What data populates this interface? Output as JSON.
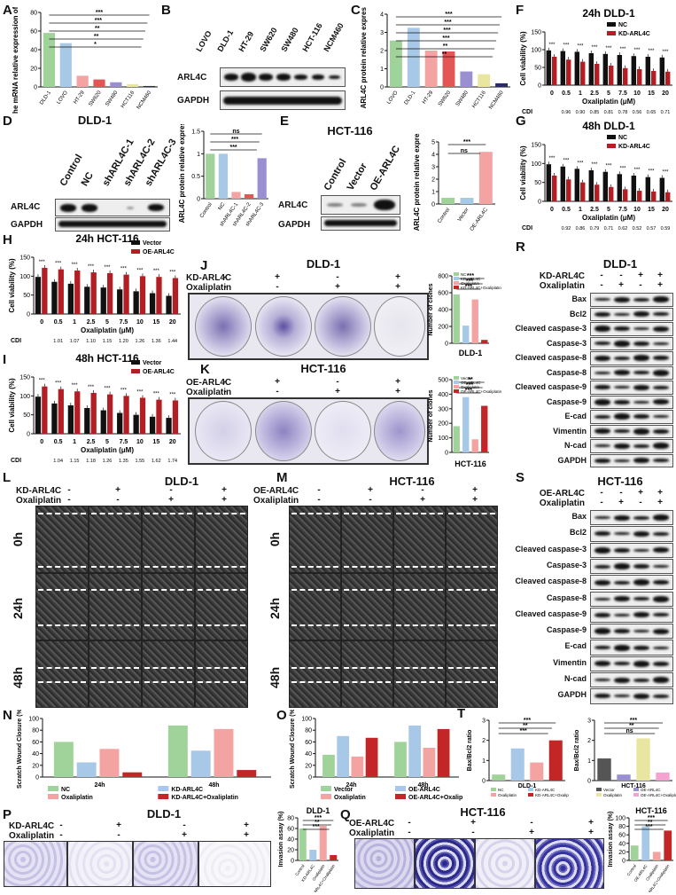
{
  "panel_letters": [
    "A",
    "B",
    "C",
    "D",
    "E",
    "F",
    "G",
    "H",
    "I",
    "J",
    "K",
    "L",
    "M",
    "N",
    "O",
    "P",
    "Q",
    "R",
    "S",
    "T"
  ],
  "B": {
    "lanes": [
      "LOVO",
      "DLD-1",
      "HT-29",
      "SW620",
      "SW480",
      "HCT-116",
      "NCM460"
    ],
    "rows": [
      "ARL4C",
      "GAPDH"
    ]
  },
  "D": {
    "title": "DLD-1",
    "lanes": [
      "Control",
      "NC",
      "shARL4C-1",
      "shARL4C-2",
      "shARL4C-3"
    ],
    "rows": [
      "ARL4C",
      "GAPDH"
    ]
  },
  "E": {
    "title": "HCT-116",
    "lanes": [
      "Control",
      "Vector",
      "OE-ARL4C"
    ],
    "rows": [
      "ARL4C",
      "GAPDH"
    ]
  },
  "F": {
    "title": "24h DLD-1",
    "legend": [
      "NC",
      "KD-ARL4C"
    ],
    "ylabel": "Cell viability (%)",
    "xlabel": "Oxaliplatin (μM)",
    "cdi_label": "CDI",
    "cdi": [
      "0.96",
      "0.90",
      "0.85",
      "0.81",
      "0.78",
      "0.56",
      "0.65",
      "0.71"
    ]
  },
  "G": {
    "title": "48h DLD-1",
    "legend": [
      "NC",
      "KD-ARL4C"
    ],
    "ylabel": "Cell viability (%)",
    "xlabel": "Oxaliplatin (μM)",
    "cdi_label": "CDI",
    "cdi": [
      "0.92",
      "0.86",
      "0.79",
      "0.71",
      "0.62",
      "0.52",
      "0.57",
      "0.59"
    ]
  },
  "H": {
    "title": "24h HCT-116",
    "legend": [
      "Vector",
      "OE-ARL4C"
    ],
    "ylabel": "Cell viability (%)",
    "xlabel": "Oxaliplatin (μM)",
    "cdi_label": "CDI",
    "cdi": [
      "1.01",
      "1.07",
      "1.10",
      "1.15",
      "1.20",
      "1.26",
      "1.36",
      "1.44"
    ]
  },
  "I": {
    "title": "48h HCT-116",
    "legend": [
      "Vector",
      "OE-ARL4C"
    ],
    "ylabel": "Cell viability (%)",
    "xlabel": "Oxaliplatin (μM)",
    "cdi_label": "CDI",
    "cdi": [
      "1.04",
      "1.15",
      "1.18",
      "1.26",
      "1.35",
      "1.55",
      "1.62",
      "1.74"
    ]
  },
  "J": {
    "title": "DLD-1",
    "rows": [
      "KD-ARL4C",
      "Oxaliplatin"
    ],
    "signs": [
      [
        "-",
        "+",
        "-",
        "+"
      ],
      [
        "-",
        "-",
        "+",
        "+"
      ]
    ]
  },
  "K": {
    "title": "HCT-116",
    "rows": [
      "OE-ARL4C",
      "Oxaliplatin"
    ],
    "signs": [
      [
        "-",
        "+",
        "-",
        "+"
      ],
      [
        "-",
        "-",
        "+",
        "+"
      ]
    ]
  },
  "L": {
    "title": "DLD-1",
    "rows": [
      "KD-ARL4C",
      "Oxaliplatin"
    ],
    "signs": [
      [
        "-",
        "+",
        "-",
        "+"
      ],
      [
        "-",
        "-",
        "+",
        "+"
      ]
    ],
    "times": [
      "0h",
      "24h",
      "48h"
    ]
  },
  "M": {
    "title": "HCT-116",
    "rows": [
      "OE-ARL4C",
      "Oxaliplatin"
    ],
    "signs": [
      [
        "-",
        "+",
        "-",
        "+"
      ],
      [
        "-",
        "-",
        "+",
        "+"
      ]
    ],
    "times": [
      "0h",
      "24h",
      "48h"
    ]
  },
  "P": {
    "title": "DLD-1",
    "rows": [
      "KD-ARL4C",
      "Oxaliplatin"
    ],
    "signs": [
      [
        "-",
        "+",
        "-",
        "+"
      ],
      [
        "-",
        "-",
        "+",
        "+"
      ]
    ]
  },
  "Q": {
    "title": "HCT-116",
    "rows": [
      "OE-ARL4C",
      "Oxaliplatin"
    ],
    "signs": [
      [
        "-",
        "+",
        "-",
        "+"
      ],
      [
        "-",
        "-",
        "+",
        "+"
      ]
    ]
  },
  "R": {
    "title": "DLD-1",
    "rows": [
      "KD-ARL4C",
      "Oxaliplatin"
    ],
    "signs": [
      [
        "-",
        "-",
        "+",
        "+"
      ],
      [
        "-",
        "+",
        "-",
        "+"
      ]
    ],
    "blots": [
      "Bax",
      "Bcl2",
      "Cleaved caspase-3",
      "Caspase-3",
      "Cleaved caspase-8",
      "Caspase-8",
      "Cleaved caspase-9",
      "Caspase-9",
      "E-cad",
      "Vimentin",
      "N-cad",
      "GAPDH"
    ]
  },
  "S": {
    "title": "HCT-116",
    "rows": [
      "OE-ARL4C",
      "Oxaliplatin"
    ],
    "signs": [
      [
        "-",
        "-",
        "+",
        "+"
      ],
      [
        "-",
        "+",
        "-",
        "+"
      ]
    ],
    "blots": [
      "Bax",
      "Bcl2",
      "Cleaved caspase-3",
      "Caspase-3",
      "Cleaved caspase-8",
      "Caspase-8",
      "Cleaved caspase-9",
      "Caspase-9",
      "E-cad",
      "Vimentin",
      "N-cad",
      "GAPDH"
    ]
  },
  "chart_data": [
    {
      "id": "A",
      "type": "bar",
      "ylabel": "The mRNA relative expression of ARL4C",
      "categories": [
        "DLD-1",
        "LOVO",
        "HT-29",
        "SW620",
        "SW480",
        "HCT116",
        "NCM460"
      ],
      "values": [
        58,
        47,
        12,
        8,
        5,
        3,
        1
      ],
      "ylim": [
        0,
        80
      ],
      "yticks": [
        0,
        20,
        40,
        60,
        80
      ],
      "colors": [
        "#9fd39a",
        "#a8c8e8",
        "#f4a3a3",
        "#e45656",
        "#9a8fd0",
        "#e8e6a0",
        "#2a2a6a"
      ],
      "sig": [
        "***",
        "***",
        "**",
        "**",
        "*"
      ]
    },
    {
      "id": "C",
      "type": "bar",
      "ylabel": "ARL4C protein relative expression",
      "categories": [
        "LOVO",
        "DLD-1",
        "HT-29",
        "SW620",
        "SW480",
        "HCT116",
        "NCM460"
      ],
      "values": [
        2.55,
        3.25,
        2.0,
        1.95,
        0.85,
        0.7,
        0.2
      ],
      "ylim": [
        0,
        4
      ],
      "yticks": [
        0,
        1,
        2,
        3,
        4
      ],
      "colors": [
        "#9fd39a",
        "#a8c8e8",
        "#f4a3a3",
        "#e45656",
        "#9a8fd0",
        "#e8e6a0",
        "#2a2a6a"
      ],
      "sig": [
        "***",
        "***",
        "***",
        "***",
        "**",
        "**"
      ]
    },
    {
      "id": "D2",
      "type": "bar",
      "ylabel": "ARL4C protein relative expression",
      "categories": [
        "Control",
        "NC",
        "shARL4C-1",
        "shARL4C-2",
        "shARL4C-3"
      ],
      "values": [
        1.0,
        1.0,
        0.15,
        0.1,
        0.9
      ],
      "ylim": [
        0,
        1.5
      ],
      "yticks": [
        0,
        0.5,
        1.0,
        1.5
      ],
      "colors": [
        "#9fd39a",
        "#a8c8e8",
        "#f4a3a3",
        "#e45656",
        "#9a8fd0"
      ],
      "sig": [
        "ns",
        "***",
        "***"
      ]
    },
    {
      "id": "E2",
      "type": "bar",
      "ylabel": "ARL4C protein relative expression",
      "categories": [
        "Control",
        "Vector",
        "OE-ARL4C"
      ],
      "values": [
        0.5,
        0.5,
        4.2
      ],
      "ylim": [
        0,
        5
      ],
      "yticks": [
        0,
        1,
        2,
        3,
        4,
        5
      ],
      "colors": [
        "#9fd39a",
        "#a8c8e8",
        "#f4a3a3"
      ],
      "sig": [
        "***",
        "ns"
      ]
    },
    {
      "id": "F",
      "type": "bar",
      "title": "24h DLD-1",
      "categories": [
        "0",
        "0.5",
        "1",
        "2.5",
        "5",
        "7.5",
        "10",
        "15",
        "20"
      ],
      "series": [
        {
          "name": "NC",
          "values": [
            98,
            96,
            94,
            90,
            88,
            85,
            82,
            80,
            78
          ]
        },
        {
          "name": "KD-ARL4C",
          "values": [
            80,
            72,
            66,
            60,
            55,
            48,
            45,
            40,
            38
          ]
        }
      ],
      "ylim": [
        0,
        150
      ],
      "yticks": [
        0,
        50,
        100,
        150
      ]
    },
    {
      "id": "G",
      "type": "bar",
      "title": "48h DLD-1",
      "categories": [
        "0",
        "0.5",
        "1",
        "2.5",
        "5",
        "7.5",
        "10",
        "15",
        "20"
      ],
      "series": [
        {
          "name": "NC",
          "values": [
            98,
            92,
            86,
            82,
            78,
            72,
            68,
            64,
            62
          ]
        },
        {
          "name": "KD-ARL4C",
          "values": [
            68,
            58,
            50,
            44,
            38,
            32,
            28,
            26,
            24
          ]
        }
      ],
      "ylim": [
        0,
        150
      ],
      "yticks": [
        0,
        50,
        100,
        150
      ]
    },
    {
      "id": "H",
      "type": "bar",
      "title": "24h HCT-116",
      "categories": [
        "0",
        "0.5",
        "1",
        "2.5",
        "5",
        "7.5",
        "10",
        "15",
        "20"
      ],
      "series": [
        {
          "name": "Vector",
          "values": [
            98,
            85,
            80,
            72,
            70,
            65,
            60,
            55,
            48
          ]
        },
        {
          "name": "OE-ARL4C",
          "values": [
            122,
            118,
            115,
            110,
            108,
            104,
            100,
            98,
            95
          ]
        }
      ],
      "ylim": [
        0,
        150
      ],
      "yticks": [
        0,
        50,
        100,
        150
      ]
    },
    {
      "id": "I",
      "type": "bar",
      "title": "48h HCT-116",
      "categories": [
        "0",
        "0.5",
        "1",
        "2.5",
        "5",
        "7.5",
        "10",
        "15",
        "20"
      ],
      "series": [
        {
          "name": "Vector",
          "values": [
            98,
            80,
            75,
            68,
            62,
            55,
            50,
            45,
            42
          ]
        },
        {
          "name": "OE-ARL4C",
          "values": [
            125,
            118,
            112,
            108,
            104,
            100,
            95,
            90,
            88
          ]
        }
      ],
      "ylim": [
        0,
        150
      ],
      "yticks": [
        0,
        50,
        100,
        150
      ]
    },
    {
      "id": "J2",
      "type": "bar",
      "title": "DLD-1",
      "ylabel": "Number of clones",
      "categories": [
        "NC",
        "KD-ARL4C",
        "Oxaliplatin",
        "KD-ARL4C+Oxaliplatin"
      ],
      "values": [
        580,
        210,
        520,
        40
      ],
      "ylim": [
        0,
        800
      ],
      "yticks": [
        0,
        200,
        400,
        600,
        800
      ],
      "colors": [
        "#9fd39a",
        "#a8c8e8",
        "#f4a3a3",
        "#c22626"
      ],
      "sig": [
        "***",
        "***",
        "***"
      ]
    },
    {
      "id": "K2",
      "type": "bar",
      "title": "HCT-116",
      "ylabel": "Number of clones",
      "categories": [
        "Vector",
        "OE-ARL4C",
        "Oxaliplatin",
        "OE-ARL4C+Oxaliplatin"
      ],
      "values": [
        180,
        380,
        90,
        320
      ],
      "ylim": [
        0,
        500
      ],
      "yticks": [
        0,
        100,
        200,
        300,
        400,
        500
      ],
      "colors": [
        "#9fd39a",
        "#a8c8e8",
        "#f4a3a3",
        "#c22626"
      ],
      "sig": [
        "**",
        "***",
        "***"
      ]
    },
    {
      "id": "N",
      "type": "bar",
      "ylabel": "Scratch Wound Closure (%)",
      "categories": [
        "24h",
        "48h"
      ],
      "series": [
        {
          "name": "NC",
          "values": [
            60,
            88
          ]
        },
        {
          "name": "KD-ARL4C",
          "values": [
            25,
            45
          ]
        },
        {
          "name": "Oxaliplatin",
          "values": [
            48,
            82
          ]
        },
        {
          "name": "KD-ARL4C+Oxaliplatin",
          "values": [
            8,
            12
          ]
        }
      ],
      "ylim": [
        0,
        100
      ],
      "yticks": [
        0,
        20,
        40,
        60,
        80,
        100
      ],
      "colors": [
        "#9fd39a",
        "#a8c8e8",
        "#f4a3a3",
        "#c22626"
      ]
    },
    {
      "id": "O",
      "type": "bar",
      "ylabel": "Scratch Wound Closure (%)",
      "categories": [
        "24h",
        "48h"
      ],
      "series": [
        {
          "name": "Vector",
          "values": [
            38,
            60
          ]
        },
        {
          "name": "OE-ARL4C",
          "values": [
            70,
            88
          ]
        },
        {
          "name": "Oxaliplatin",
          "values": [
            35,
            50
          ]
        },
        {
          "name": "OE-ARL4C+Oxaliplatin",
          "values": [
            67,
            82
          ]
        }
      ],
      "ylim": [
        0,
        100
      ],
      "yticks": [
        0,
        20,
        40,
        60,
        80,
        100
      ],
      "colors": [
        "#9fd39a",
        "#a8c8e8",
        "#f4a3a3",
        "#c22626"
      ]
    },
    {
      "id": "P2",
      "type": "bar",
      "title": "DLD-1",
      "ylabel": "Invasion assay (%)",
      "categories": [
        "Control",
        "KD-ARL4C",
        "Oxaliplatin",
        "KD-ARL4C+Oxaliplatin"
      ],
      "values": [
        60,
        20,
        65,
        10
      ],
      "ylim": [
        0,
        80
      ],
      "yticks": [
        0,
        20,
        40,
        60,
        80
      ],
      "colors": [
        "#9fd39a",
        "#a8c8e8",
        "#f4a3a3",
        "#c22626"
      ],
      "sig": [
        "***",
        "**",
        "***"
      ]
    },
    {
      "id": "Q2",
      "type": "bar",
      "title": "HCT-116",
      "ylabel": "Invasion assay (%)",
      "categories": [
        "Control",
        "OE-ARL4C",
        "Oxaliplatin",
        "OE-ARL4C+Oxaliplatin"
      ],
      "values": [
        35,
        80,
        20,
        70
      ],
      "ylim": [
        0,
        100
      ],
      "yticks": [
        0,
        20,
        40,
        60,
        80,
        100
      ],
      "colors": [
        "#9fd39a",
        "#a8c8e8",
        "#f4a3a3",
        "#c22626"
      ],
      "sig": [
        "***",
        "**",
        "***"
      ]
    },
    {
      "id": "T1",
      "type": "bar",
      "title": "DLD-1",
      "ylabel": "Bax/Bcl2 ratio",
      "categories": [
        "NC",
        "KD-ARL4C",
        "Oxaliplatin",
        "KD-ARL4C+Oxaliplatin"
      ],
      "values": [
        0.3,
        1.6,
        0.9,
        2.0
      ],
      "ylim": [
        0,
        3
      ],
      "yticks": [
        0,
        1,
        2,
        3
      ],
      "colors": [
        "#9fd39a",
        "#a8c8e8",
        "#f4a3a3",
        "#c22626"
      ],
      "sig": [
        "***",
        "**",
        "***"
      ]
    },
    {
      "id": "T2",
      "type": "bar",
      "title": "HCT-116",
      "ylabel": "Bax/Bcl2 ratio",
      "categories": [
        "Vector",
        "OE-ARL4C",
        "Oxaliplatin",
        "OE-ARL4C+Oxaliplatin"
      ],
      "values": [
        1.1,
        0.3,
        2.1,
        0.4
      ],
      "ylim": [
        0,
        3
      ],
      "yticks": [
        0,
        1,
        2,
        3
      ],
      "colors": [
        "#555555",
        "#9a8fd0",
        "#e8e6a0",
        "#f4a3d0"
      ],
      "sig": [
        "***",
        "**",
        "ns"
      ]
    }
  ]
}
